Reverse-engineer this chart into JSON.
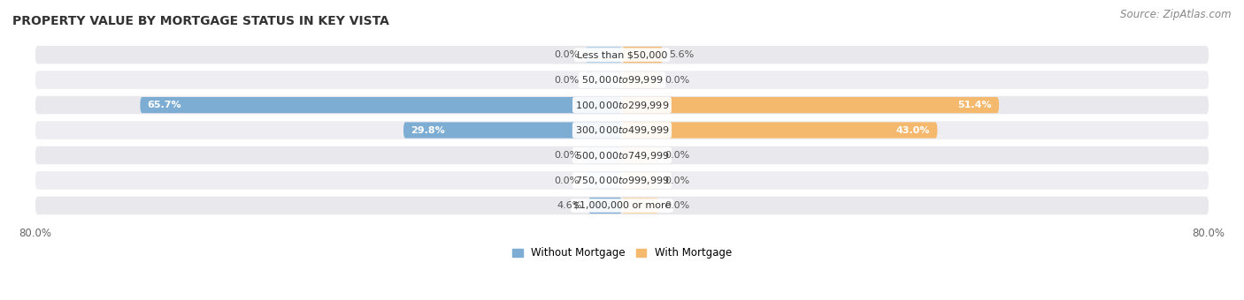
{
  "title": "PROPERTY VALUE BY MORTGAGE STATUS IN KEY VISTA",
  "source": "Source: ZipAtlas.com",
  "categories": [
    "Less than $50,000",
    "$50,000 to $99,999",
    "$100,000 to $299,999",
    "$300,000 to $499,999",
    "$500,000 to $749,999",
    "$750,000 to $999,999",
    "$1,000,000 or more"
  ],
  "without_mortgage": [
    0.0,
    0.0,
    65.7,
    29.8,
    0.0,
    0.0,
    4.6
  ],
  "with_mortgage": [
    5.6,
    0.0,
    51.4,
    43.0,
    0.0,
    0.0,
    0.0
  ],
  "color_without": "#7eadd4",
  "color_without_light": "#b8d4ea",
  "color_with": "#f5b96e",
  "color_with_light": "#f9d9ae",
  "row_bg": "#e8e8ed",
  "row_bg_alt": "#ededf2",
  "xlim": 80.0,
  "stub_value": 5.0,
  "legend_without": "Without Mortgage",
  "legend_with": "With Mortgage",
  "title_fontsize": 10,
  "source_fontsize": 8.5,
  "label_fontsize": 8,
  "cat_fontsize": 8,
  "tick_fontsize": 8.5,
  "bar_height": 0.72,
  "value_label_inside_color": "white",
  "value_label_outside_color": "#555555"
}
